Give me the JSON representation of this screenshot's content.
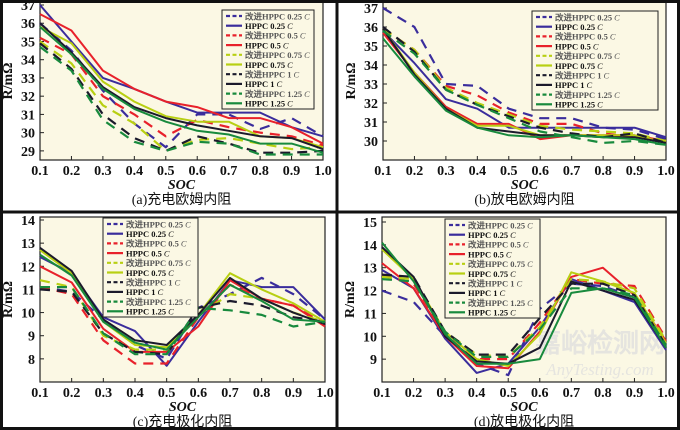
{
  "colors": {
    "purple": "#3a2d9c",
    "red": "#e8212b",
    "yellowgreen": "#b8cf12",
    "black": "#1b1a2c",
    "green": "#188a3d",
    "plot_bg": "#fbf8e4"
  },
  "watermark": {
    "cn": "嘉峪检测网",
    "en": "AnyTesting.com"
  },
  "chart_data": [
    {
      "type": "line",
      "caption": "(a)充电欧姆内阻",
      "xlabel": "SOC",
      "ylabel": "R/mΩ",
      "x": [
        0.1,
        0.2,
        0.3,
        0.4,
        0.5,
        0.6,
        0.7,
        0.8,
        0.9,
        1.0
      ],
      "xticks": [
        "0.1",
        "0.2",
        "0.3",
        "0.4",
        "0.5",
        "0.6",
        "0.7",
        "0.8",
        "0.9",
        "1.0"
      ],
      "yticks": [
        "29",
        "30",
        "31",
        "32",
        "33",
        "34",
        "35",
        "36",
        "37"
      ],
      "ylim": [
        28.5,
        37
      ],
      "grid": false,
      "legend": "top-right",
      "series": [
        {
          "name": "改进HPPC 0.25",
          "unit": "C",
          "color": "purple",
          "dashed": true,
          "values": [
            36,
            34.5,
            32.3,
            30.5,
            29.2,
            31.0,
            31.0,
            30.2,
            30.8,
            29.8
          ]
        },
        {
          "name": "HPPC 0.25",
          "unit": "C",
          "color": "purple",
          "dashed": false,
          "values": [
            37,
            35,
            33,
            32.4,
            31.7,
            31.1,
            31.1,
            31.1,
            30.3,
            29.8
          ]
        },
        {
          "name": "改进HPPC 0.5",
          "unit": "C",
          "color": "red",
          "dashed": true,
          "values": [
            35.2,
            34.3,
            32,
            31,
            29.8,
            30.7,
            30.3,
            30,
            29.8,
            29.3
          ]
        },
        {
          "name": "HPPC 0.5",
          "unit": "C",
          "color": "red",
          "dashed": false,
          "values": [
            36.5,
            35.6,
            33.4,
            32.4,
            31.7,
            31.4,
            30.8,
            30.8,
            30.3,
            29.4
          ]
        },
        {
          "name": "改进HPPC 0.75",
          "unit": "C",
          "color": "yellowgreen",
          "dashed": true,
          "values": [
            35,
            33.8,
            31.5,
            30.5,
            29,
            29.6,
            29.7,
            29.4,
            29.1,
            29.2
          ]
        },
        {
          "name": "HPPC 0.75",
          "unit": "C",
          "color": "yellowgreen",
          "dashed": false,
          "values": [
            35.8,
            34.9,
            32.8,
            31.7,
            30.9,
            30.6,
            30.6,
            29.8,
            29.7,
            29.2
          ]
        },
        {
          "name": "改进HPPC 1",
          "unit": "C",
          "color": "black",
          "dashed": true,
          "values": [
            34.9,
            33.5,
            31,
            29.7,
            29,
            29.8,
            29.4,
            28.9,
            28.9,
            29
          ]
        },
        {
          "name": "HPPC 1",
          "unit": "C",
          "color": "black",
          "dashed": false,
          "values": [
            36,
            34.4,
            32.5,
            31.4,
            30.8,
            30.4,
            30.1,
            29.8,
            29.7,
            29.1
          ]
        },
        {
          "name": "改进HPPC 1.25",
          "unit": "C",
          "color": "green",
          "dashed": true,
          "values": [
            34.7,
            33.4,
            30.7,
            29.5,
            29,
            29.5,
            29.4,
            28.8,
            28.8,
            28.8
          ]
        },
        {
          "name": "HPPC 1.25",
          "unit": "C",
          "color": "green",
          "dashed": false,
          "values": [
            35.8,
            34.3,
            32.4,
            31.3,
            30.6,
            30.1,
            29.9,
            29.4,
            29.4,
            28.9
          ]
        }
      ]
    },
    {
      "type": "line",
      "caption": "(b)放电欧姆内阻",
      "xlabel": "SOC",
      "ylabel": "R/mΩ",
      "x": [
        0.1,
        0.2,
        0.3,
        0.4,
        0.5,
        0.6,
        0.7,
        0.8,
        0.9,
        1.0
      ],
      "xticks": [
        "0.1",
        "0.2",
        "0.3",
        "0.4",
        "0.5",
        "0.6",
        "0.7",
        "0.8",
        "0.9",
        "1.0"
      ],
      "yticks": [
        "30",
        "31",
        "32",
        "33",
        "34",
        "35",
        "36",
        "37"
      ],
      "ylim": [
        29,
        37
      ],
      "grid": false,
      "legend": "top-right",
      "series": [
        {
          "name": "改进HPPC 0.25",
          "unit": "C",
          "color": "purple",
          "dashed": true,
          "values": [
            37,
            36,
            33,
            32.9,
            31.7,
            31.2,
            31.2,
            30.7,
            30.6,
            30.1
          ]
        },
        {
          "name": "HPPC 0.25",
          "unit": "C",
          "color": "purple",
          "dashed": false,
          "values": [
            35.8,
            34.1,
            32.2,
            31.7,
            30.7,
            30.7,
            30.7,
            30.7,
            30.7,
            30.2
          ]
        },
        {
          "name": "改进HPPC 0.5",
          "unit": "C",
          "color": "red",
          "dashed": true,
          "values": [
            35.9,
            34.8,
            32.9,
            32.4,
            31.5,
            30.9,
            30.9,
            30.4,
            30.2,
            30
          ]
        },
        {
          "name": "HPPC 0.5",
          "unit": "C",
          "color": "red",
          "dashed": false,
          "values": [
            35.7,
            33.6,
            31.8,
            30.9,
            30.9,
            30.1,
            30.3,
            30.3,
            30.3,
            30
          ]
        },
        {
          "name": "改进HPPC 0.75",
          "unit": "C",
          "color": "yellowgreen",
          "dashed": true,
          "values": [
            35.9,
            34.8,
            32.8,
            32,
            31.4,
            30.8,
            30.6,
            30.5,
            30.4,
            30
          ]
        },
        {
          "name": "HPPC 0.75",
          "unit": "C",
          "color": "yellowgreen",
          "dashed": false,
          "values": [
            35.9,
            33.6,
            31.7,
            30.8,
            30.8,
            30.3,
            30.3,
            30.3,
            30.3,
            29.9
          ]
        },
        {
          "name": "改进HPPC 1",
          "unit": "C",
          "color": "black",
          "dashed": true,
          "values": [
            36,
            34.7,
            32.7,
            31.9,
            31.3,
            30.7,
            30.4,
            30.2,
            30.4,
            29.9
          ]
        },
        {
          "name": "HPPC 1",
          "unit": "C",
          "color": "black",
          "dashed": false,
          "values": [
            35.9,
            33.5,
            31.7,
            30.7,
            30.5,
            30.3,
            30.3,
            30.2,
            30.2,
            29.9
          ]
        },
        {
          "name": "改进HPPC 1.25",
          "unit": "C",
          "color": "green",
          "dashed": true,
          "values": [
            35.8,
            34.6,
            32.7,
            31.9,
            31.2,
            30.5,
            30.2,
            29.9,
            30,
            29.8
          ]
        },
        {
          "name": "HPPC 1.25",
          "unit": "C",
          "color": "green",
          "dashed": false,
          "values": [
            35.4,
            33.4,
            31.6,
            30.7,
            30.3,
            30.2,
            30.3,
            30.2,
            30.1,
            29.8
          ]
        }
      ]
    },
    {
      "type": "line",
      "caption": "(c)充电极化内阻",
      "xlabel": "SOC",
      "ylabel": "R/mΩ",
      "x": [
        0.1,
        0.2,
        0.3,
        0.4,
        0.5,
        0.6,
        0.7,
        0.8,
        0.9,
        1.0
      ],
      "xticks": [
        "0.1",
        "0.2",
        "0.3",
        "0.4",
        "0.5",
        "0.6",
        "0.7",
        "0.8",
        "0.9",
        "1.0"
      ],
      "yticks": [
        "8",
        "9",
        "10",
        "11",
        "12",
        "13",
        "14"
      ],
      "ylim": [
        7,
        14
      ],
      "grid": false,
      "legend": "top-left",
      "series": [
        {
          "name": "改进HPPC 0.25",
          "unit": "C",
          "color": "purple",
          "dashed": true,
          "values": [
            11.1,
            10.9,
            9.7,
            8.6,
            8.0,
            10.2,
            10.8,
            11.5,
            10.8,
            9.7
          ]
        },
        {
          "name": "HPPC 0.25",
          "unit": "C",
          "color": "purple",
          "dashed": false,
          "values": [
            12.4,
            11.7,
            9.8,
            9.2,
            7.7,
            9.6,
            11.4,
            11.1,
            11.1,
            9.7
          ]
        },
        {
          "name": "改进HPPC 0.5",
          "unit": "C",
          "color": "red",
          "dashed": true,
          "values": [
            11.1,
            10.8,
            8.8,
            7.8,
            7.8,
            9.8,
            11.2,
            10.6,
            10.3,
            9.5
          ]
        },
        {
          "name": "HPPC 0.5",
          "unit": "C",
          "color": "red",
          "dashed": false,
          "values": [
            12,
            11.3,
            9.3,
            8.3,
            8.3,
            9.4,
            11.4,
            10.6,
            10.3,
            9.4
          ]
        },
        {
          "name": "改进HPPC 0.75",
          "unit": "C",
          "color": "yellowgreen",
          "dashed": true,
          "values": [
            11.4,
            11.1,
            9.0,
            8.4,
            8.4,
            9.9,
            10.8,
            10.6,
            10.0,
            9.6
          ]
        },
        {
          "name": "HPPC 0.75",
          "unit": "C",
          "color": "yellowgreen",
          "dashed": false,
          "values": [
            12.7,
            11.7,
            9.6,
            8.6,
            8.5,
            9.9,
            11.7,
            11.0,
            10.4,
            9.6
          ]
        },
        {
          "name": "改进HPPC 1",
          "unit": "C",
          "color": "black",
          "dashed": true,
          "values": [
            11,
            10.9,
            9.1,
            8.3,
            8.2,
            10.2,
            10.5,
            10.3,
            9.8,
            9.6
          ]
        },
        {
          "name": "HPPC 1",
          "unit": "C",
          "color": "black",
          "dashed": false,
          "values": [
            12.8,
            11.8,
            9.7,
            8.8,
            8.6,
            9.9,
            11.5,
            10.6,
            10.0,
            9.5
          ]
        },
        {
          "name": "改进HPPC 1.25",
          "unit": "C",
          "color": "green",
          "dashed": true,
          "values": [
            11.1,
            11.1,
            9.1,
            8.2,
            8.2,
            10.2,
            10.1,
            9.9,
            9.4,
            9.6
          ]
        },
        {
          "name": "HPPC 1.25",
          "unit": "C",
          "color": "green",
          "dashed": false,
          "values": [
            12.5,
            11.6,
            9.6,
            8.7,
            8.4,
            9.8,
            11.2,
            10.5,
            9.7,
            9.6
          ]
        }
      ]
    },
    {
      "type": "line",
      "caption": "(d)放电极化内阻",
      "xlabel": "SOC",
      "ylabel": "R/mΩ",
      "x": [
        0.1,
        0.2,
        0.3,
        0.4,
        0.5,
        0.6,
        0.7,
        0.8,
        0.9,
        1.0
      ],
      "xticks": [
        "0.1",
        "0.2",
        "0.3",
        "0.4",
        "0.5",
        "0.6",
        "0.7",
        "0.8",
        "0.9",
        "1.0"
      ],
      "yticks": [
        "9",
        "10",
        "11",
        "12",
        "13",
        "14",
        "15"
      ],
      "ylim": [
        8,
        15
      ],
      "grid": false,
      "legend": "top-left",
      "series": [
        {
          "name": "改进HPPC 0.25",
          "unit": "C",
          "color": "purple",
          "dashed": true,
          "values": [
            12,
            11.5,
            10.0,
            8.8,
            8.3,
            11.2,
            12.3,
            12.2,
            11.7,
            9.5
          ]
        },
        {
          "name": "HPPC 0.25",
          "unit": "C",
          "color": "purple",
          "dashed": false,
          "values": [
            12.9,
            12.1,
            9.9,
            8.4,
            8.8,
            10.4,
            12.5,
            12.0,
            11.5,
            9.4
          ]
        },
        {
          "name": "改进HPPC 0.5",
          "unit": "C",
          "color": "red",
          "dashed": true,
          "values": [
            12.7,
            12.3,
            10.1,
            9.0,
            9.0,
            10.6,
            12.5,
            12.3,
            12.2,
            9.9
          ]
        },
        {
          "name": "HPPC 0.5",
          "unit": "C",
          "color": "red",
          "dashed": false,
          "values": [
            13.2,
            12.1,
            10.0,
            8.7,
            8.6,
            10.2,
            12.6,
            13.0,
            11.8,
            9.8
          ]
        },
        {
          "name": "改进HPPC 0.75",
          "unit": "C",
          "color": "yellowgreen",
          "dashed": true,
          "values": [
            12.6,
            12.5,
            10.2,
            9.2,
            9.1,
            10.4,
            12.5,
            12.4,
            12.1,
            9.8
          ]
        },
        {
          "name": "HPPC 0.75",
          "unit": "C",
          "color": "yellowgreen",
          "dashed": false,
          "values": [
            13.8,
            12.5,
            10.2,
            9.0,
            8.7,
            10.1,
            12.8,
            12.4,
            11.9,
            9.7
          ]
        },
        {
          "name": "改进HPPC 1",
          "unit": "C",
          "color": "black",
          "dashed": true,
          "values": [
            12.7,
            12.6,
            10.2,
            9.2,
            9.2,
            10.8,
            12.3,
            12.3,
            11.8,
            9.6
          ]
        },
        {
          "name": "HPPC 1",
          "unit": "C",
          "color": "black",
          "dashed": false,
          "values": [
            13.9,
            12.6,
            10.0,
            8.9,
            8.8,
            9.5,
            12.4,
            12.0,
            11.6,
            9.5
          ]
        },
        {
          "name": "改进HPPC 1.25",
          "unit": "C",
          "color": "green",
          "dashed": true,
          "values": [
            12.5,
            12.4,
            10.2,
            9.1,
            9.1,
            10.3,
            12.1,
            12.1,
            11.8,
            9.6
          ]
        },
        {
          "name": "HPPC 1.25",
          "unit": "C",
          "color": "green",
          "dashed": false,
          "values": [
            14.1,
            12.4,
            10.1,
            8.8,
            8.8,
            9.0,
            11.9,
            12.1,
            11.7,
            9.5
          ]
        }
      ]
    }
  ]
}
